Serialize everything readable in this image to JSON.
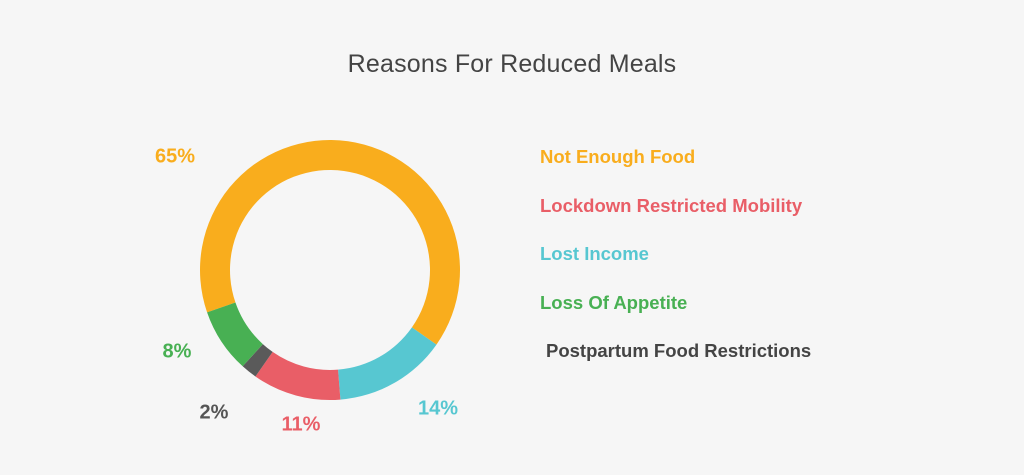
{
  "chart_data": {
    "type": "pie",
    "title": "Reasons For Reduced Meals",
    "donut": true,
    "legend_position": "right",
    "series": [
      {
        "name": "Not Enough Food",
        "value": 65,
        "label": "65%",
        "color": "#f9ad1d"
      },
      {
        "name": "Lost Income",
        "value": 14,
        "label": "14%",
        "color": "#57c7d1"
      },
      {
        "name": "Lockdown Restricted Mobility",
        "value": 11,
        "label": "11%",
        "color": "#e95e67"
      },
      {
        "name": "Postpartum Food Restrictions",
        "value": 2,
        "label": "2%",
        "color": "#5a5a5a"
      },
      {
        "name": "Loss Of Appetite",
        "value": 8,
        "label": "8%",
        "color": "#48b053"
      }
    ],
    "legend": [
      {
        "label": "Not Enough Food",
        "color": "#f9ad1d"
      },
      {
        "label": "Lockdown Restricted Mobility",
        "color": "#e95e67"
      },
      {
        "label": "Lost Income",
        "color": "#57c7d1"
      },
      {
        "label": "Loss Of Appetite",
        "color": "#48b053"
      },
      {
        "label": "Postpartum Food Restrictions",
        "color": "#444444"
      }
    ]
  }
}
